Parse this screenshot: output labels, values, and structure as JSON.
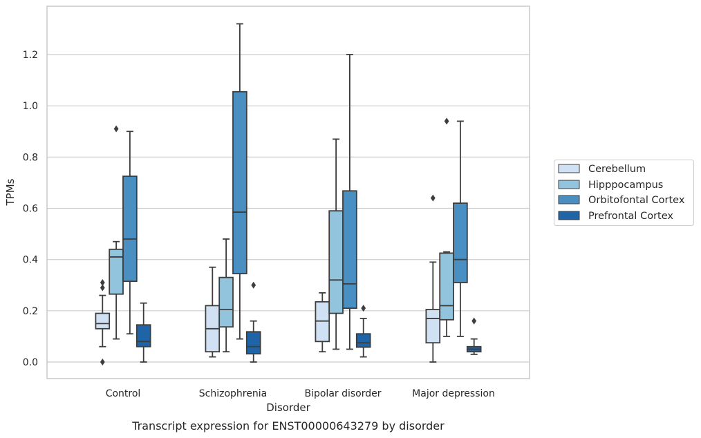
{
  "chart_data": {
    "type": "box",
    "caption": "Transcript expression for ENST00000643279 by disorder",
    "xlabel": "Disorder",
    "ylabel": "TPMs",
    "ylim": [
      -0.065,
      1.39
    ],
    "yticks": [
      "0.0",
      "0.2",
      "0.4",
      "0.6",
      "0.8",
      "1.0",
      "1.2"
    ],
    "ytick_values": [
      0.0,
      0.2,
      0.4,
      0.6,
      0.8,
      1.0,
      1.2
    ],
    "grid": "horizontal",
    "legend_position": "right",
    "categories": [
      "Control",
      "Schizophrenia",
      "Bipolar disorder",
      "Major depression"
    ],
    "series": [
      {
        "name": "Cerebellum",
        "color": "#cfe1f2",
        "boxes": [
          {
            "whisker_low": 0.06,
            "q1": 0.13,
            "median": 0.15,
            "q3": 0.19,
            "whisker_high": 0.26,
            "outliers": [
              0.0,
              0.29,
              0.31
            ]
          },
          {
            "whisker_low": 0.02,
            "q1": 0.04,
            "median": 0.13,
            "q3": 0.22,
            "whisker_high": 0.37,
            "outliers": []
          },
          {
            "whisker_low": 0.04,
            "q1": 0.08,
            "median": 0.16,
            "q3": 0.235,
            "whisker_high": 0.27,
            "outliers": []
          },
          {
            "whisker_low": 0.0,
            "q1": 0.075,
            "median": 0.17,
            "q3": 0.205,
            "whisker_high": 0.39,
            "outliers": [
              0.64
            ]
          }
        ]
      },
      {
        "name": "Hipppocampus",
        "color": "#93c4de",
        "boxes": [
          {
            "whisker_low": 0.09,
            "q1": 0.265,
            "median": 0.41,
            "q3": 0.44,
            "whisker_high": 0.47,
            "outliers": [
              0.91
            ]
          },
          {
            "whisker_low": 0.04,
            "q1": 0.137,
            "median": 0.205,
            "q3": 0.33,
            "whisker_high": 0.48,
            "outliers": []
          },
          {
            "whisker_low": 0.05,
            "q1": 0.19,
            "median": 0.32,
            "q3": 0.59,
            "whisker_high": 0.87,
            "outliers": []
          },
          {
            "whisker_low": 0.1,
            "q1": 0.165,
            "median": 0.22,
            "q3": 0.425,
            "whisker_high": 0.43,
            "outliers": [
              0.94
            ]
          }
        ]
      },
      {
        "name": "Orbitofontal Cortex",
        "color": "#4a8fc2",
        "boxes": [
          {
            "whisker_low": 0.11,
            "q1": 0.315,
            "median": 0.48,
            "q3": 0.725,
            "whisker_high": 0.9,
            "outliers": []
          },
          {
            "whisker_low": 0.09,
            "q1": 0.345,
            "median": 0.585,
            "q3": 1.055,
            "whisker_high": 1.32,
            "outliers": []
          },
          {
            "whisker_low": 0.05,
            "q1": 0.21,
            "median": 0.305,
            "q3": 0.668,
            "whisker_high": 1.2,
            "outliers": []
          },
          {
            "whisker_low": 0.1,
            "q1": 0.31,
            "median": 0.4,
            "q3": 0.62,
            "whisker_high": 0.94,
            "outliers": []
          }
        ]
      },
      {
        "name": "Prefrontal Cortex",
        "color": "#1f64a6",
        "boxes": [
          {
            "whisker_low": 0.0,
            "q1": 0.06,
            "median": 0.08,
            "q3": 0.145,
            "whisker_high": 0.23,
            "outliers": []
          },
          {
            "whisker_low": 0.0,
            "q1": 0.032,
            "median": 0.06,
            "q3": 0.118,
            "whisker_high": 0.16,
            "outliers": [
              0.3
            ]
          },
          {
            "whisker_low": 0.02,
            "q1": 0.058,
            "median": 0.075,
            "q3": 0.11,
            "whisker_high": 0.17,
            "outliers": [
              0.21
            ]
          },
          {
            "whisker_low": 0.03,
            "q1": 0.04,
            "median": 0.05,
            "q3": 0.06,
            "whisker_high": 0.09,
            "outliers": [
              0.16
            ]
          }
        ]
      }
    ]
  },
  "colors": {
    "edge": "#3d3d3d",
    "grid": "#cccccc",
    "frame": "#cccccc",
    "background": "#ffffff"
  }
}
